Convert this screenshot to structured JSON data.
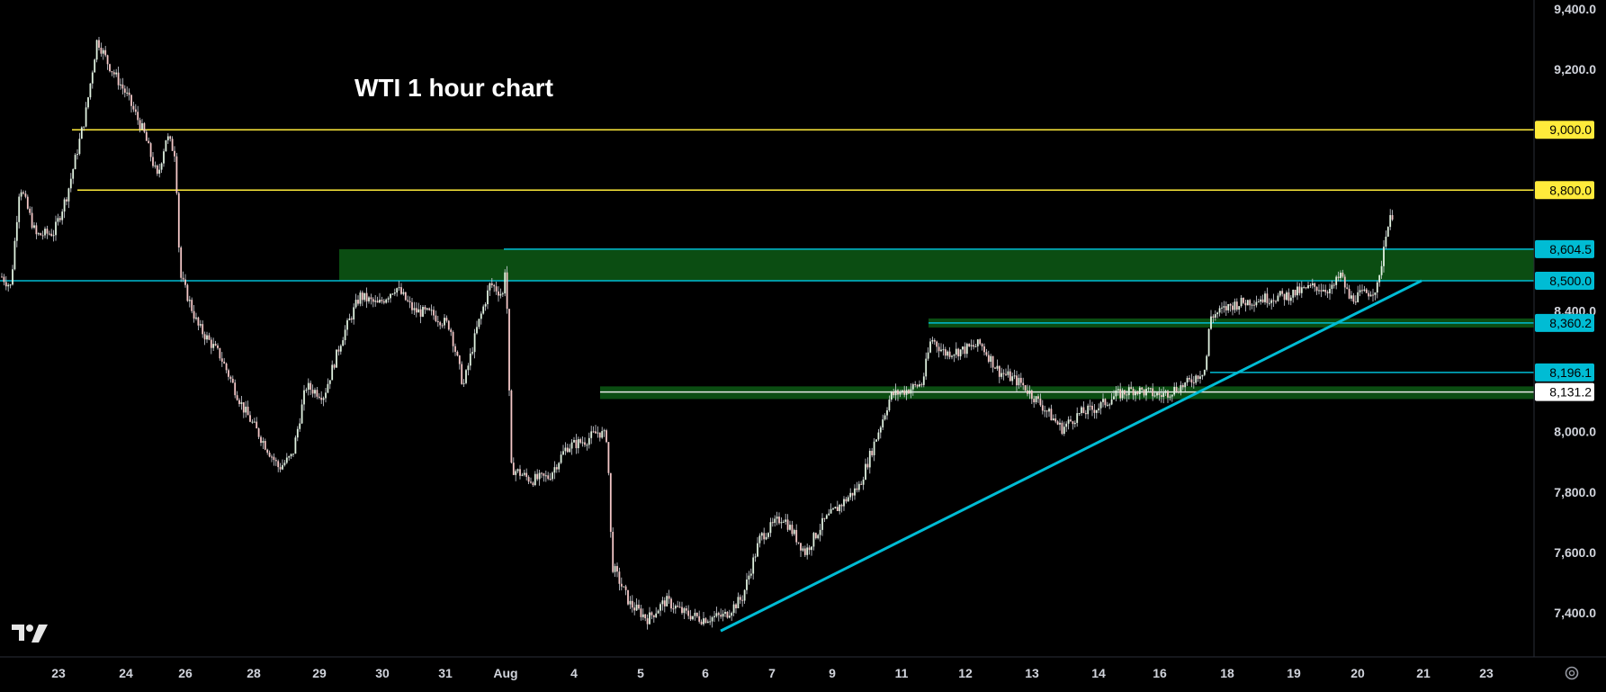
{
  "chart_data": {
    "type": "candlestick",
    "title": "WTI 1 hour chart",
    "y_axis": {
      "range": [
        7300,
        9400
      ],
      "ticks": [
        "9,400.0",
        "9,200.0",
        "8,400.0",
        "8,000.0",
        "7,800.0",
        "7,600.0",
        "7,400.0"
      ]
    },
    "x_axis": {
      "ticks": [
        "23",
        "24",
        "26",
        "28",
        "29",
        "30",
        "31",
        "Aug",
        "4",
        "5",
        "6",
        "7",
        "9",
        "11",
        "12",
        "13",
        "14",
        "16",
        "18",
        "19",
        "20",
        "21",
        "23"
      ]
    },
    "levels": [
      {
        "value": 9000.0,
        "label": "9,000.0",
        "color": "#ffeb3b"
      },
      {
        "value": 8800.0,
        "label": "8,800.0",
        "color": "#ffeb3b"
      },
      {
        "value": 8604.5,
        "label": "8,604.5",
        "color": "#00bcd4"
      },
      {
        "value": 8500.0,
        "label": "8,500.0",
        "color": "#00bcd4"
      },
      {
        "value": 8360.2,
        "label": "8,360.2",
        "color": "#00bcd4"
      },
      {
        "value": 8196.1,
        "label": "8,196.1",
        "color": "#00bcd4"
      },
      {
        "value": 8131.2,
        "label": "8,131.2",
        "color": "#ffffff"
      }
    ],
    "zones": [
      {
        "from": 8500,
        "to": 8604.5
      },
      {
        "from": 8345,
        "to": 8375
      },
      {
        "from": 8108,
        "to": 8150
      }
    ],
    "trendline": {
      "x": [
        "6",
        "21"
      ],
      "y": [
        7340,
        8500
      ]
    },
    "price_path": [
      [
        0,
        8520
      ],
      [
        12,
        8480
      ],
      [
        22,
        8820
      ],
      [
        40,
        8650
      ],
      [
        60,
        8660
      ],
      [
        75,
        8790
      ],
      [
        95,
        9050
      ],
      [
        108,
        9300
      ],
      [
        120,
        9220
      ],
      [
        140,
        9120
      ],
      [
        160,
        8990
      ],
      [
        175,
        8840
      ],
      [
        185,
        8980
      ],
      [
        195,
        8920
      ],
      [
        200,
        8520
      ],
      [
        220,
        8350
      ],
      [
        245,
        8250
      ],
      [
        270,
        8080
      ],
      [
        290,
        7980
      ],
      [
        310,
        7880
      ],
      [
        325,
        7920
      ],
      [
        340,
        8150
      ],
      [
        360,
        8120
      ],
      [
        380,
        8310
      ],
      [
        400,
        8450
      ],
      [
        420,
        8420
      ],
      [
        440,
        8480
      ],
      [
        460,
        8400
      ],
      [
        480,
        8390
      ],
      [
        500,
        8350
      ],
      [
        515,
        8150
      ],
      [
        530,
        8340
      ],
      [
        545,
        8490
      ],
      [
        560,
        8450
      ],
      [
        562,
        8600
      ],
      [
        568,
        7880
      ],
      [
        590,
        7840
      ],
      [
        610,
        7850
      ],
      [
        630,
        7950
      ],
      [
        650,
        7970
      ],
      [
        665,
        8000
      ],
      [
        675,
        7980
      ],
      [
        680,
        7560
      ],
      [
        700,
        7430
      ],
      [
        720,
        7380
      ],
      [
        740,
        7440
      ],
      [
        760,
        7400
      ],
      [
        780,
        7380
      ],
      [
        805,
        7390
      ],
      [
        825,
        7450
      ],
      [
        845,
        7650
      ],
      [
        870,
        7720
      ],
      [
        895,
        7600
      ],
      [
        915,
        7700
      ],
      [
        935,
        7760
      ],
      [
        955,
        7820
      ],
      [
        975,
        7990
      ],
      [
        990,
        8120
      ],
      [
        1010,
        8140
      ],
      [
        1025,
        8160
      ],
      [
        1035,
        8310
      ],
      [
        1050,
        8260
      ],
      [
        1070,
        8270
      ],
      [
        1090,
        8290
      ],
      [
        1110,
        8200
      ],
      [
        1135,
        8160
      ],
      [
        1160,
        8080
      ],
      [
        1180,
        8010
      ],
      [
        1200,
        8060
      ],
      [
        1220,
        8080
      ],
      [
        1240,
        8120
      ],
      [
        1260,
        8140
      ],
      [
        1290,
        8120
      ],
      [
        1320,
        8160
      ],
      [
        1340,
        8210
      ],
      [
        1345,
        8380
      ],
      [
        1370,
        8420
      ],
      [
        1400,
        8440
      ],
      [
        1430,
        8450
      ],
      [
        1460,
        8480
      ],
      [
        1480,
        8470
      ],
      [
        1490,
        8520
      ],
      [
        1500,
        8440
      ],
      [
        1520,
        8460
      ],
      [
        1532,
        8480
      ],
      [
        1540,
        8660
      ],
      [
        1550,
        8740
      ]
    ]
  },
  "watermark": {
    "name": "TradingView"
  },
  "icons": {
    "settings": "settings-gear-icon"
  },
  "colors": {
    "background": "#000000",
    "up": "#e0f2e0",
    "down": "#f4c7c7",
    "wick": "#d1d4dc",
    "zone": "#0b4d12",
    "axis_text": "#d1d4dc"
  }
}
